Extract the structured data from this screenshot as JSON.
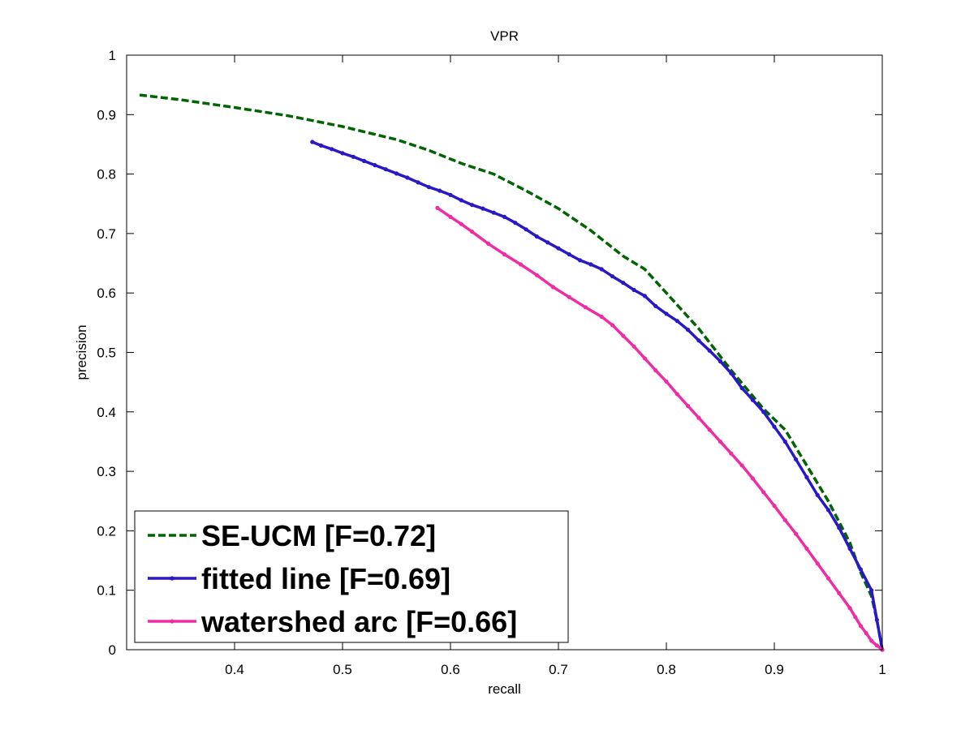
{
  "chart_data": {
    "type": "line",
    "title": "VPR",
    "xlabel": "recall",
    "ylabel": "precision",
    "xlim": [
      0.3,
      1.0
    ],
    "ylim": [
      0,
      1
    ],
    "xticks": [
      "0.4",
      "0.5",
      "0.6",
      "0.7",
      "0.8",
      "0.9",
      "1"
    ],
    "yticks": [
      "0",
      "0.1",
      "0.2",
      "0.3",
      "0.4",
      "0.5",
      "0.6",
      "0.7",
      "0.8",
      "0.9",
      "1"
    ],
    "grid": false,
    "legend_position": "bottom-left",
    "series": [
      {
        "name": "SE-UCM [F=0.72]",
        "color": "#006400",
        "style": "dashed",
        "x": [
          0.312,
          0.35,
          0.4,
          0.45,
          0.5,
          0.55,
          0.58,
          0.61,
          0.64,
          0.67,
          0.7,
          0.73,
          0.76,
          0.78,
          0.8,
          0.83,
          0.86,
          0.89,
          0.91,
          0.93,
          0.95,
          0.97,
          0.98,
          0.99,
          0.995,
          1.0
        ],
        "y": [
          0.933,
          0.925,
          0.912,
          0.898,
          0.88,
          0.858,
          0.84,
          0.818,
          0.8,
          0.772,
          0.742,
          0.705,
          0.662,
          0.64,
          0.6,
          0.54,
          0.47,
          0.405,
          0.37,
          0.31,
          0.25,
          0.18,
          0.13,
          0.09,
          0.05,
          0.0
        ]
      },
      {
        "name": "fitted line [F=0.69]",
        "color": "#2a18c8",
        "style": "solid-markers",
        "x": [
          0.472,
          0.48,
          0.49,
          0.5,
          0.51,
          0.52,
          0.53,
          0.54,
          0.55,
          0.56,
          0.57,
          0.58,
          0.59,
          0.6,
          0.61,
          0.62,
          0.63,
          0.64,
          0.65,
          0.66,
          0.67,
          0.68,
          0.69,
          0.7,
          0.71,
          0.72,
          0.73,
          0.74,
          0.75,
          0.76,
          0.77,
          0.78,
          0.79,
          0.8,
          0.81,
          0.82,
          0.83,
          0.84,
          0.85,
          0.86,
          0.87,
          0.88,
          0.89,
          0.9,
          0.91,
          0.92,
          0.93,
          0.94,
          0.95,
          0.96,
          0.97,
          0.98,
          0.99,
          0.995,
          1.0
        ],
        "y": [
          0.854,
          0.848,
          0.842,
          0.835,
          0.829,
          0.822,
          0.815,
          0.808,
          0.801,
          0.794,
          0.786,
          0.778,
          0.772,
          0.765,
          0.756,
          0.748,
          0.742,
          0.735,
          0.728,
          0.718,
          0.707,
          0.695,
          0.685,
          0.675,
          0.665,
          0.655,
          0.648,
          0.64,
          0.628,
          0.617,
          0.605,
          0.595,
          0.578,
          0.565,
          0.553,
          0.538,
          0.52,
          0.503,
          0.485,
          0.465,
          0.44,
          0.42,
          0.4,
          0.375,
          0.35,
          0.32,
          0.29,
          0.26,
          0.235,
          0.205,
          0.17,
          0.135,
          0.1,
          0.05,
          0.0
        ]
      },
      {
        "name": "watershed arc [F=0.66]",
        "color": "#ee2ca4",
        "style": "solid-markers",
        "x": [
          0.588,
          0.6,
          0.61,
          0.62,
          0.635,
          0.65,
          0.665,
          0.68,
          0.695,
          0.71,
          0.725,
          0.74,
          0.75,
          0.76,
          0.77,
          0.78,
          0.79,
          0.8,
          0.81,
          0.82,
          0.83,
          0.84,
          0.85,
          0.86,
          0.87,
          0.88,
          0.89,
          0.9,
          0.91,
          0.92,
          0.93,
          0.94,
          0.95,
          0.96,
          0.97,
          0.975,
          0.98,
          0.985,
          0.99,
          0.995,
          1.0
        ],
        "y": [
          0.743,
          0.728,
          0.716,
          0.703,
          0.683,
          0.665,
          0.648,
          0.63,
          0.61,
          0.593,
          0.576,
          0.56,
          0.546,
          0.528,
          0.51,
          0.49,
          0.47,
          0.451,
          0.43,
          0.41,
          0.39,
          0.37,
          0.35,
          0.33,
          0.31,
          0.288,
          0.265,
          0.242,
          0.218,
          0.195,
          0.17,
          0.145,
          0.12,
          0.095,
          0.07,
          0.055,
          0.04,
          0.028,
          0.015,
          0.007,
          0.0
        ]
      }
    ]
  }
}
